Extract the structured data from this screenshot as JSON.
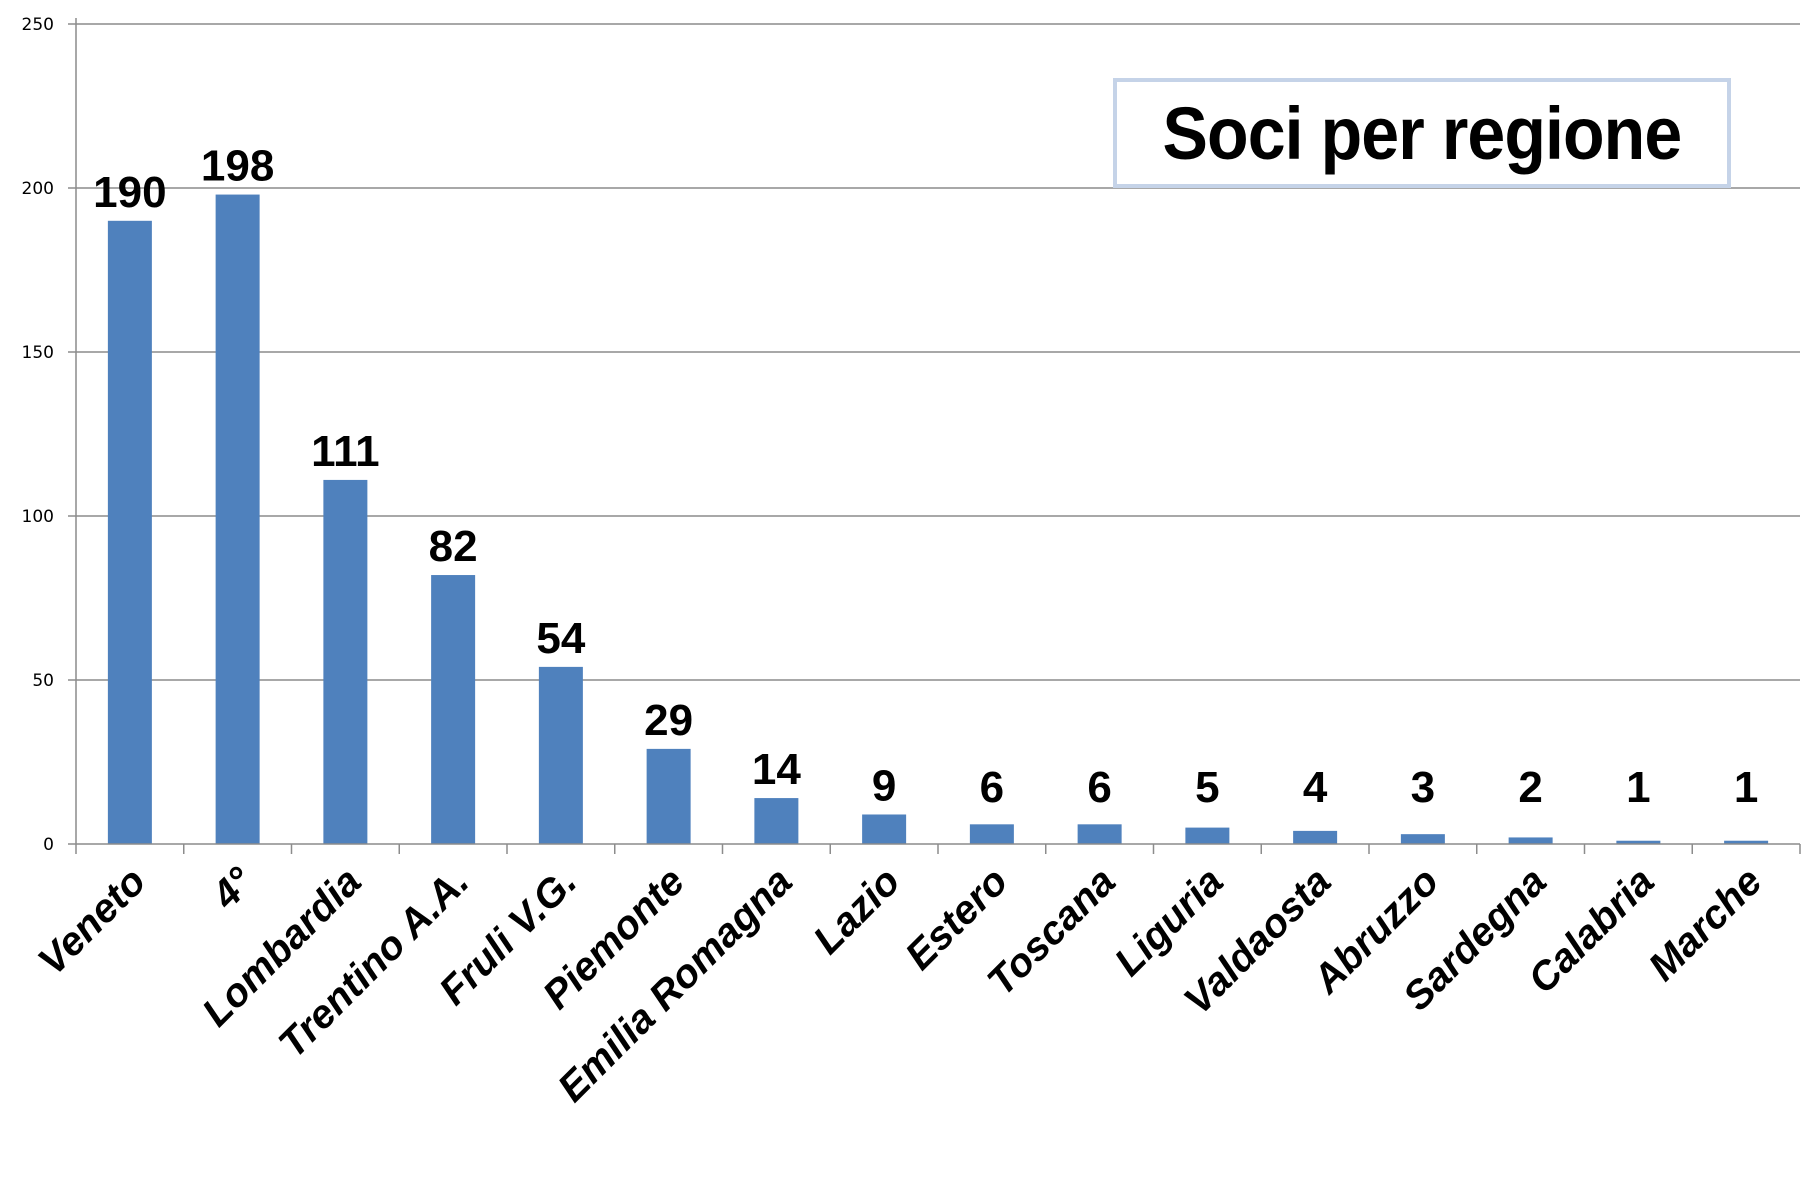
{
  "chart_data": {
    "type": "bar",
    "title": "Soci per regione",
    "xlabel": "",
    "ylabel": "",
    "ylim": [
      0,
      250
    ],
    "yticks": [
      0,
      50,
      100,
      150,
      200,
      250
    ],
    "grid": true,
    "bar_color": "#4f81bd",
    "categories": [
      "Veneto",
      "4°",
      "Lombardia",
      "Trentino A.A.",
      "Fruli V.G.",
      "Piemonte",
      "Emilia Romagna",
      "Lazio",
      "Estero",
      "Toscana",
      "Liguria",
      "Valdaosta",
      "Abruzzo",
      "Sardegna",
      "Calabria",
      "Marche"
    ],
    "values": [
      190,
      198,
      111,
      82,
      54,
      29,
      14,
      9,
      6,
      6,
      5,
      4,
      3,
      2,
      1,
      1
    ]
  }
}
